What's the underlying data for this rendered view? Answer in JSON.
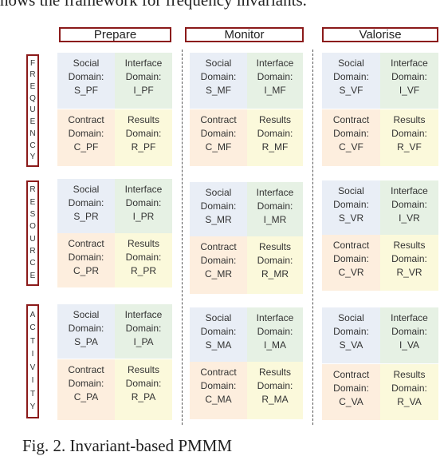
{
  "caption_top": "hows the framework for frequency invariants.",
  "caption_bottom": "Fig. 2. Invariant-based PMMM",
  "columns": [
    {
      "label": "Prepare"
    },
    {
      "label": "Monitor"
    },
    {
      "label": "Valorise"
    }
  ],
  "rows": [
    {
      "label": [
        "F",
        "R",
        "E",
        "Q",
        "U",
        "E",
        "N",
        "C",
        "Y"
      ]
    },
    {
      "label": [
        "R",
        "E",
        "S",
        "O",
        "U",
        "R",
        "C",
        "E"
      ]
    },
    {
      "label": [
        "A",
        "C",
        "T",
        "I",
        "V",
        "I",
        "T",
        "Y"
      ]
    }
  ],
  "domain_labels": {
    "social": "Social",
    "interface": "Interface",
    "contract": "Contract",
    "results": "Results",
    "domain_word": "Domain:"
  },
  "codes": [
    [
      {
        "social": "S_PF",
        "interface": "I_PF",
        "contract": "C_PF",
        "results": "R_PF"
      },
      {
        "social": "S_MF",
        "interface": "I_MF",
        "contract": "C_MF",
        "results": "R_MF"
      },
      {
        "social": "S_VF",
        "interface": "I_VF",
        "contract": "C_VF",
        "results": "R_VF"
      }
    ],
    [
      {
        "social": "S_PR",
        "interface": "I_PR",
        "contract": "C_PR",
        "results": "R_PR"
      },
      {
        "social": "S_MR",
        "interface": "I_MR",
        "contract": "C_MR",
        "results": "R_MR"
      },
      {
        "social": "S_VR",
        "interface": "I_VR",
        "contract": "C_VR",
        "results": "R_VR"
      }
    ],
    [
      {
        "social": "S_PA",
        "interface": "I_PA",
        "contract": "C_PA",
        "results": "R_PA"
      },
      {
        "social": "S_MA",
        "interface": "I_MA",
        "contract": "C_MA",
        "results": "R_MA"
      },
      {
        "social": "S_VA",
        "interface": "I_VA",
        "contract": "C_VA",
        "results": "R_VA"
      }
    ]
  ],
  "colors": {
    "header_border": "#8b1a1a",
    "social": "#e9eef6",
    "interface": "#e6f1e4",
    "contract": "#fdeede",
    "results": "#fbf9db"
  }
}
